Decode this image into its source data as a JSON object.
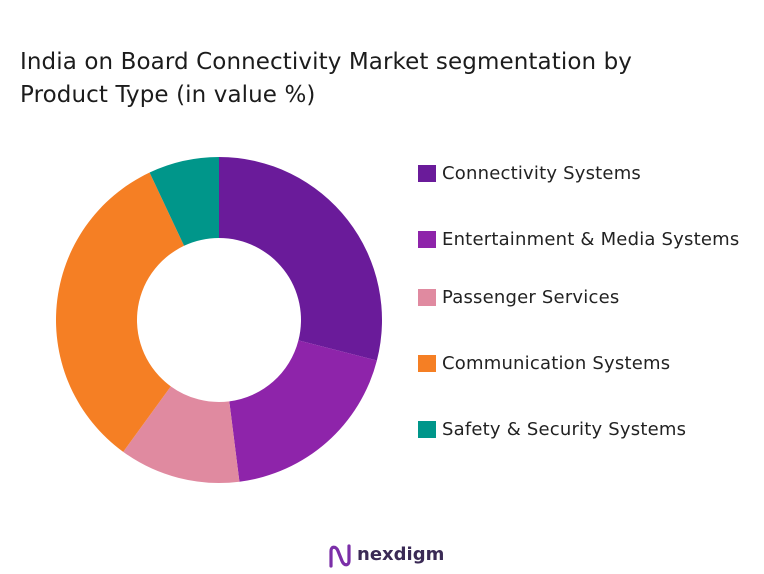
{
  "chart_data": {
    "type": "pie",
    "title": "India on Board Connectivity Market segmentation by Product Type (in value %)",
    "donut": true,
    "unit": "%",
    "categories": [
      "Connectivity Systems",
      "Entertainment & Media Systems",
      "Passenger Services",
      "Communication Systems",
      "Safety & Security Systems"
    ],
    "values": [
      29,
      19,
      12,
      33,
      7
    ],
    "colors": [
      "#6a1b9a",
      "#8e24aa",
      "#e08aa0",
      "#f57f24",
      "#00968a"
    ],
    "legend_position": "right"
  },
  "brand": {
    "name": "nexdigm"
  }
}
